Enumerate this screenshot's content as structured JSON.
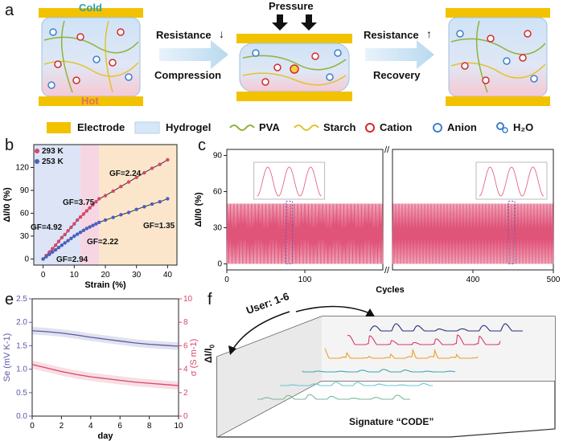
{
  "panel_a": {
    "letter": "a",
    "cold": "Cold",
    "hot": "Hot",
    "pressure": "Pressure",
    "resistance_down": "Resistance",
    "compression": "Compression",
    "resistance_up": "Resistance",
    "recovery": "Recovery",
    "legend": {
      "electrode": "Electrode",
      "hydrogel": "Hydrogel",
      "pva": "PVA",
      "starch": "Starch",
      "cation": "Cation",
      "anion": "Anion",
      "h2o": "H₂O"
    },
    "colors": {
      "electrode": "#f2c200",
      "hydrogel": "#d6e8f7",
      "pva": "#8fb33a",
      "starch": "#e2c22e",
      "cation": "#d42a2a",
      "anion": "#3f7fd1",
      "arrow": "#c9e2f4"
    }
  },
  "panel_b": {
    "letter": "b",
    "legend_293": "293 K",
    "legend_253": "253 K",
    "gf_labels": [
      "GF=2.24",
      "GF=3.75",
      "GF=4.92",
      "GF=1.35",
      "GF=2.22",
      "GF=2.94"
    ]
  },
  "panel_c": {
    "letter": "c"
  },
  "panel_e": {
    "letter": "e"
  },
  "panel_f": {
    "letter": "f",
    "user_label": "User: 1-6",
    "ylabel": "ΔI/I",
    "ylabel_sub": "0",
    "signature": "Signature “CODE”",
    "trace_colors": [
      "#2a2f7a",
      "#d63a6a",
      "#e7a12a",
      "#39a6b5",
      "#6fc4cf",
      "#7ab89a"
    ]
  },
  "chart_data": [
    {
      "type": "scatter",
      "panel": "b",
      "xlabel": "Strain (%)",
      "ylabel": "ΔI/I0 (%)",
      "xlim": [
        -3,
        43
      ],
      "ylim": [
        -8,
        150
      ],
      "xticks": [
        0,
        10,
        20,
        30,
        40
      ],
      "yticks": [
        0,
        30,
        60,
        90,
        120
      ],
      "regions": [
        {
          "from": -3,
          "to": 12,
          "color": "#dce4f6"
        },
        {
          "from": 12,
          "to": 18,
          "color": "#f7d6e4"
        },
        {
          "from": 18,
          "to": 43,
          "color": "#fbe6cc"
        }
      ],
      "series": [
        {
          "name": "293 K",
          "color": "#d9466b",
          "x": [
            0,
            1,
            2,
            3,
            4,
            5,
            6,
            7,
            8,
            9,
            10,
            11,
            12,
            13,
            14,
            15,
            16,
            17,
            18,
            20,
            22.5,
            25,
            27.5,
            30,
            32.5,
            35,
            37.5,
            40
          ],
          "y": [
            0,
            4.5,
            9,
            13.5,
            18,
            23,
            28,
            32,
            37,
            41.5,
            46,
            51,
            55,
            59,
            63,
            67,
            71,
            75,
            79,
            83,
            89,
            95,
            101,
            107,
            113,
            119,
            124,
            130
          ]
        },
        {
          "name": "253 K",
          "color": "#4a5fbd",
          "x": [
            0,
            1,
            2,
            3,
            4,
            5,
            6,
            7,
            8,
            9,
            10,
            11,
            12,
            13,
            14,
            15,
            16,
            17,
            18,
            20,
            22.5,
            25,
            27.5,
            30,
            32.5,
            35,
            37.5,
            40
          ],
          "y": [
            0,
            3,
            6,
            9,
            12,
            15,
            18,
            21,
            24,
            27,
            30,
            32.5,
            35,
            37.5,
            40,
            42,
            44,
            46,
            48,
            51,
            54.5,
            58,
            61,
            65,
            68.5,
            72,
            75,
            79
          ]
        }
      ]
    },
    {
      "type": "line",
      "panel": "c",
      "xlabel": "Cycles",
      "ylabel": "ΔI/I0 (%)",
      "yticks": [
        0,
        30,
        60,
        90
      ],
      "ylim": [
        -5,
        95
      ],
      "segments": [
        {
          "xlim": [
            0,
            200
          ],
          "xticks": [
            0,
            100
          ]
        },
        {
          "xlim": [
            300,
            500
          ],
          "xticks": [
            400,
            500
          ]
        }
      ],
      "cycle_peak": 50,
      "color": "#e0547a",
      "highlight_boxes": [
        80,
        448
      ]
    },
    {
      "type": "line",
      "panel": "e",
      "xlabel": "day",
      "ylabel_left": "Se (mV K-1)",
      "ylabel_right": "σ (S m-1)",
      "xticks": [
        0,
        2,
        4,
        6,
        8,
        10
      ],
      "xlim": [
        0,
        10
      ],
      "ylim_left": [
        0.0,
        2.5
      ],
      "yticks_left": [
        "0.0",
        "0.5",
        "1.0",
        "1.5",
        "2.0",
        "2.5"
      ],
      "ylim_right": [
        0,
        10
      ],
      "yticks_right": [
        "0",
        "2",
        "4",
        "6",
        "8",
        "10"
      ],
      "series": [
        {
          "name": "Se",
          "axis": "left",
          "color": "#5b5aa8",
          "x": [
            0,
            1,
            2,
            3,
            4,
            5,
            6,
            7,
            8,
            9,
            10
          ],
          "y": [
            1.82,
            1.8,
            1.77,
            1.73,
            1.68,
            1.64,
            1.6,
            1.56,
            1.53,
            1.51,
            1.49
          ]
        },
        {
          "name": "σ",
          "axis": "right",
          "color": "#d9466b",
          "x": [
            0,
            1,
            2,
            3,
            4,
            5,
            6,
            7,
            8,
            9,
            10
          ],
          "y": [
            4.4,
            4.1,
            3.8,
            3.55,
            3.35,
            3.2,
            3.05,
            2.9,
            2.8,
            2.7,
            2.6
          ]
        }
      ]
    }
  ]
}
